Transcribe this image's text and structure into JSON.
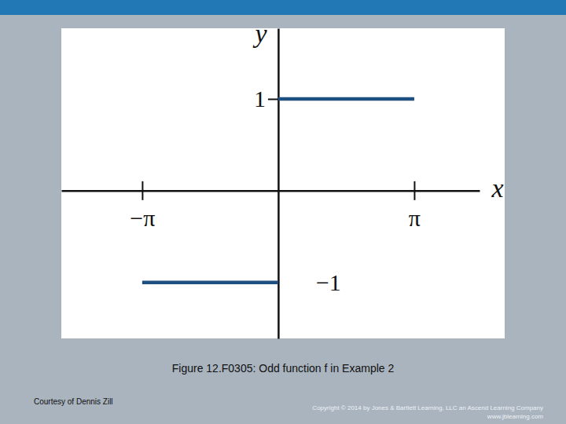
{
  "chart_data": {
    "type": "line",
    "x_label": "x",
    "y_label": "y",
    "x": [
      -3.1416,
      0,
      0,
      0,
      3.1416
    ],
    "series": [
      {
        "color": "#1d4f80",
        "values": [
          -1,
          -1,
          null,
          1,
          1
        ]
      }
    ],
    "xlim": [
      -5.01,
      4.65
    ],
    "ylim": [
      -1.61,
      1.77
    ],
    "xticks": [
      {
        "value": -3.1416,
        "label": "−π"
      },
      {
        "value": 3.1416,
        "label": "π"
      }
    ],
    "yticks": [
      1,
      {
        "value": -1,
        "label": "−1"
      }
    ],
    "grid": false,
    "annotations": [
      "Figure 12.F0305: Odd function f in Example 2",
      "Courtesy of Dennis Zill",
      "Copyright © 2014 by Jones & Bartlett Learning, LLC an Ascend Learning Company",
      "www.jblearning.com"
    ]
  }
}
